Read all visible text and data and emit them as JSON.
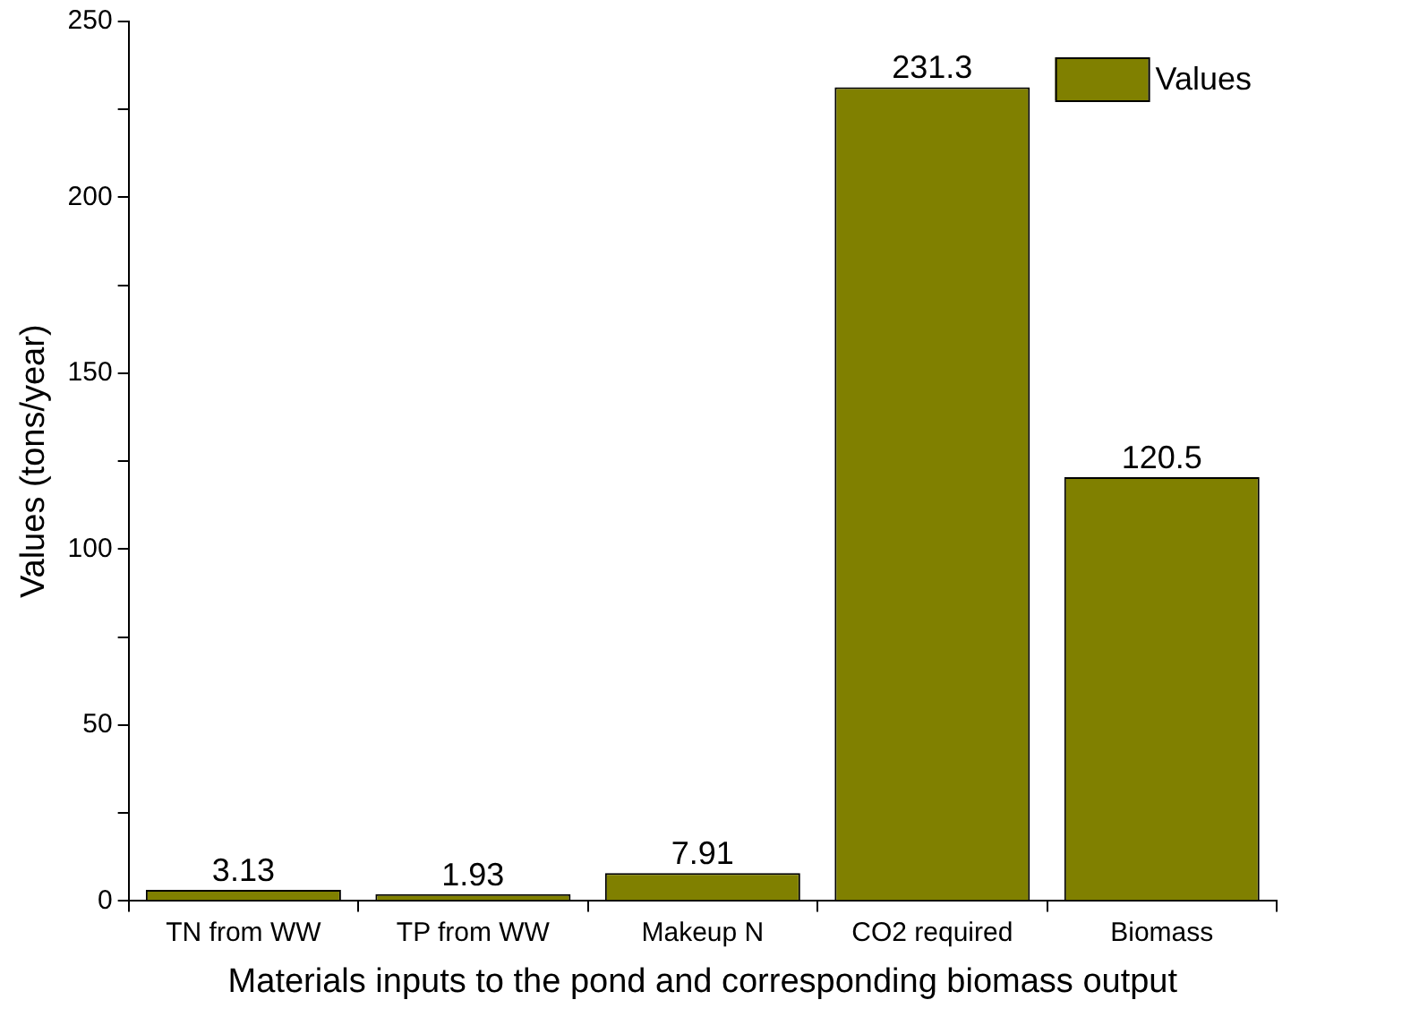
{
  "chart_data": {
    "type": "bar",
    "xlabel": "Materials inputs to the pond and corresponding biomass output",
    "ylabel": "Values (tons/year)",
    "categories": [
      "TN from WW",
      "TP from WW",
      "Makeup N",
      "CO2 required",
      "Biomass"
    ],
    "series": [
      {
        "name": "Values",
        "color": "#808000",
        "values": [
          3.13,
          1.93,
          7.91,
          231.3,
          120.5
        ]
      }
    ],
    "ylim": [
      0,
      250
    ],
    "yticks": [
      0,
      {
        "value": 25,
        "label": null
      },
      50,
      {
        "value": 75,
        "label": null
      },
      100,
      {
        "value": 125,
        "label": null
      },
      150,
      {
        "value": 175,
        "label": null
      },
      200,
      {
        "value": 225,
        "label": null
      },
      250
    ],
    "data_labels": true,
    "legend": "top right",
    "grid": false
  }
}
